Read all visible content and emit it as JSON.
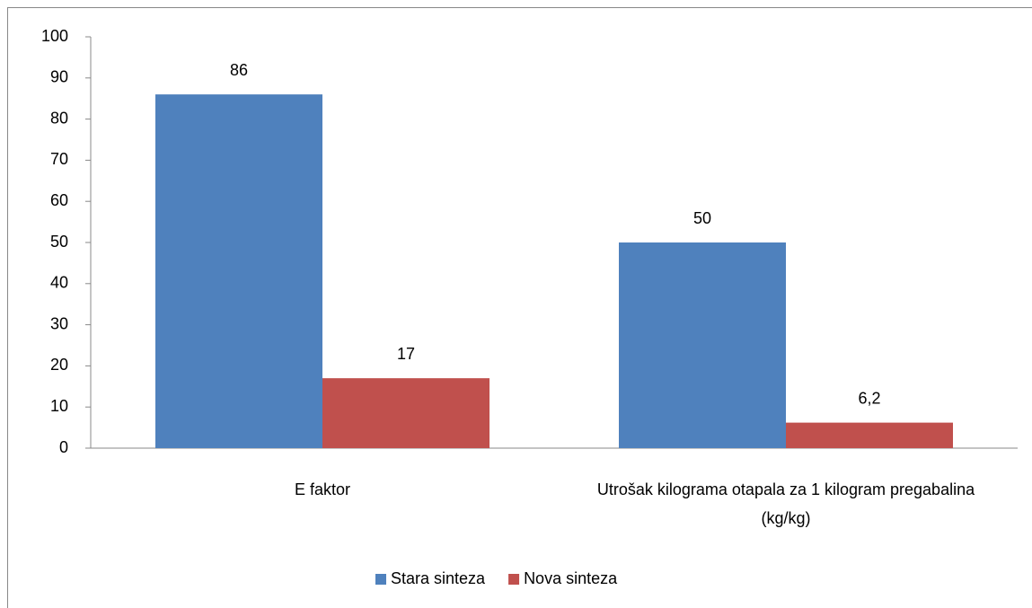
{
  "chart_data": {
    "type": "bar",
    "categories": [
      "E faktor",
      "Utrošak kilograma otapala za 1 kilogram pregabalina (kg/kg)"
    ],
    "series": [
      {
        "name": "Stara sinteza",
        "color": "#4f81bd",
        "values": [
          86,
          50
        ]
      },
      {
        "name": "Nova sinteza",
        "color": "#c0504d",
        "values": [
          17,
          6.2
        ],
        "value_labels": [
          "17",
          "6,2"
        ]
      }
    ],
    "ylim": [
      0,
      100
    ],
    "yticks": [
      0,
      10,
      20,
      30,
      40,
      50,
      60,
      70,
      80,
      90,
      100
    ],
    "grid": false,
    "legend": "bottom"
  }
}
